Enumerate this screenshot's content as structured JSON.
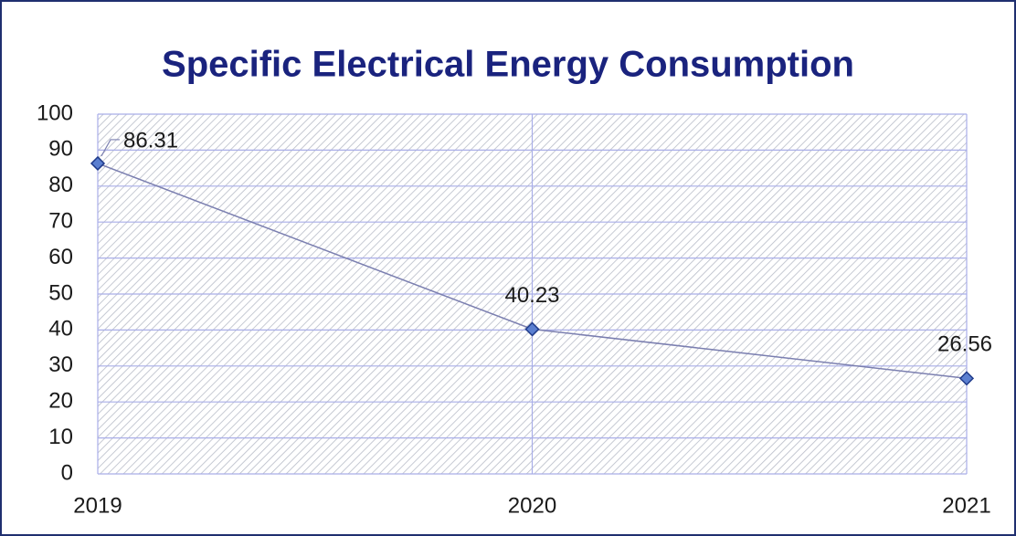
{
  "chart_data": {
    "type": "line",
    "title": "Specific Electrical Energy Consumption",
    "categories": [
      "2019",
      "2020",
      "2021"
    ],
    "values": [
      86.31,
      40.23,
      26.56
    ],
    "color": "#7b7fb0",
    "marker_color": "#5b7fd0",
    "ylim": [
      0,
      100
    ],
    "yticks": [
      0,
      10,
      20,
      30,
      40,
      50,
      60,
      70,
      80,
      90,
      100
    ],
    "grid": true
  }
}
